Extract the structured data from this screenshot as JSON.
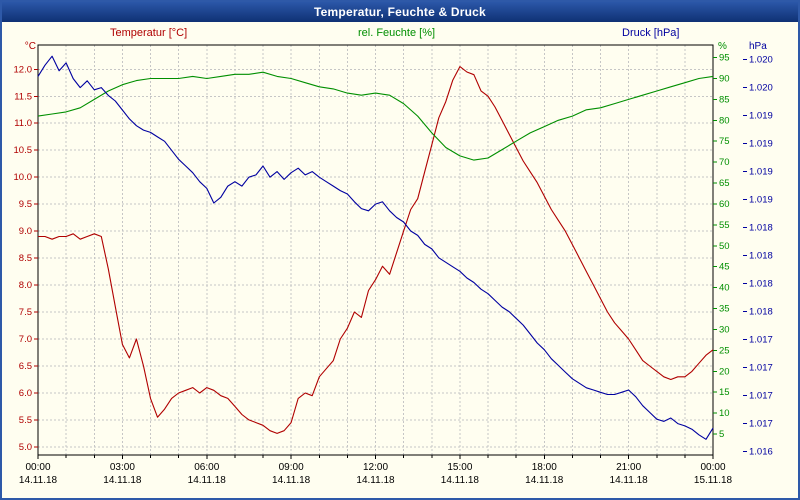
{
  "title": "Temperatur, Feuchte & Druck",
  "header": {
    "temperature_label": "Temperatur [°C]",
    "humidity_label": "rel. Feuchte [%]",
    "pressure_label": "Druck [hPa]"
  },
  "colors": {
    "background": "#fffef0",
    "titlebar_top": "#2b57a8",
    "titlebar_bottom": "#0f3174",
    "titlebar_text": "#ffffff",
    "grid": "#c6c6c6",
    "plot_border": "#000000",
    "temperature": "#b00000",
    "humidity": "#008f00",
    "pressure": "#0000a0"
  },
  "chart_data": {
    "type": "line",
    "title": "Temperatur, Feuchte & Druck",
    "grid": true,
    "x_axis": {
      "unit": "time",
      "range_hours": [
        0,
        24
      ],
      "major_tick_hours": 3,
      "minor_tick_hours": 1,
      "tick_labels": [
        {
          "time": "00:00",
          "date": "14.11.18"
        },
        {
          "time": "03:00",
          "date": "14.11.18"
        },
        {
          "time": "06:00",
          "date": "14.11.18"
        },
        {
          "time": "09:00",
          "date": "14.11.18"
        },
        {
          "time": "12:00",
          "date": "14.11.18"
        },
        {
          "time": "15:00",
          "date": "14.11.18"
        },
        {
          "time": "18:00",
          "date": "14.11.18"
        },
        {
          "time": "21:00",
          "date": "14.11.18"
        },
        {
          "time": "00:00",
          "date": "15.11.18"
        }
      ]
    },
    "axes": {
      "temperature": {
        "unit_label": "°C",
        "color": "#b00000",
        "range": [
          4.85,
          12.45
        ],
        "ticks": [
          "12.0",
          "11.5",
          "11.0",
          "10.5",
          "10.0",
          "9.5",
          "9.0",
          "8.5",
          "8.0",
          "7.5",
          "7.0",
          "6.5",
          "6.0",
          "5.5",
          "5.0"
        ]
      },
      "humidity": {
        "unit_label": "%",
        "color": "#008f00",
        "range": [
          0,
          98
        ],
        "ticks": [
          "95",
          "90",
          "85",
          "80",
          "75",
          "70",
          "65",
          "60",
          "55",
          "50",
          "45",
          "40",
          "35",
          "30",
          "25",
          "20",
          "15",
          "10",
          "5"
        ]
      },
      "pressure": {
        "unit_label": "hPa",
        "color": "#0000a0",
        "range": [
          1.01672,
          1.02038
        ],
        "ticks": [
          {
            "label": "1.020",
            "value": 1.02025
          },
          {
            "label": "1.020",
            "value": 1.02
          },
          {
            "label": "1.019",
            "value": 1.01975
          },
          {
            "label": "1.019",
            "value": 1.0195
          },
          {
            "label": "1.019",
            "value": 1.01925
          },
          {
            "label": "1.019",
            "value": 1.019
          },
          {
            "label": "1.018",
            "value": 1.01875
          },
          {
            "label": "1.018",
            "value": 1.0185
          },
          {
            "label": "1.018",
            "value": 1.01825
          },
          {
            "label": "1.018",
            "value": 1.018
          },
          {
            "label": "1.017",
            "value": 1.01775
          },
          {
            "label": "1.017",
            "value": 1.0175
          },
          {
            "label": "1.017",
            "value": 1.01725
          },
          {
            "label": "1.017",
            "value": 1.017
          },
          {
            "label": "1.016",
            "value": 1.01675
          }
        ]
      }
    },
    "series": [
      {
        "id": "temperature",
        "name": "Temperatur",
        "unit": "°C",
        "axis": "temperature",
        "color": "#b00000",
        "x_start_hours": 0,
        "x_step_hours": 0.25,
        "values": [
          8.9,
          8.9,
          8.85,
          8.9,
          8.9,
          8.95,
          8.85,
          8.9,
          8.95,
          8.9,
          8.3,
          7.6,
          6.9,
          6.65,
          7.0,
          6.5,
          5.9,
          5.55,
          5.7,
          5.9,
          6.0,
          6.05,
          6.1,
          6.0,
          6.1,
          6.05,
          5.95,
          5.9,
          5.75,
          5.6,
          5.5,
          5.45,
          5.4,
          5.3,
          5.25,
          5.3,
          5.45,
          5.9,
          6.0,
          5.95,
          6.3,
          6.45,
          6.6,
          7.0,
          7.2,
          7.5,
          7.4,
          7.9,
          8.1,
          8.35,
          8.2,
          8.6,
          9.0,
          9.4,
          9.6,
          10.1,
          10.6,
          11.1,
          11.4,
          11.8,
          12.05,
          11.95,
          11.9,
          11.6,
          11.5,
          11.3,
          11.05,
          10.8,
          10.55,
          10.3,
          10.1,
          9.9,
          9.65,
          9.4,
          9.2,
          9.0,
          8.75,
          8.5,
          8.25,
          8.0,
          7.75,
          7.5,
          7.3,
          7.15,
          7.0,
          6.8,
          6.6,
          6.5,
          6.4,
          6.3,
          6.25,
          6.3,
          6.3,
          6.4,
          6.55,
          6.7,
          6.8
        ]
      },
      {
        "id": "humidity",
        "name": "rel. Feuchte",
        "unit": "%",
        "axis": "humidity",
        "color": "#008f00",
        "x_start_hours": 0,
        "x_step_hours": 0.5,
        "values": [
          81,
          81.5,
          82,
          83,
          85,
          87,
          88.5,
          89.5,
          90,
          90,
          90,
          90.5,
          90,
          90.5,
          91,
          91,
          91.5,
          90.5,
          90,
          89,
          88,
          87.5,
          86.5,
          86,
          86.5,
          86,
          84,
          81,
          77,
          73.5,
          71.5,
          70.5,
          71,
          73,
          75,
          77,
          78.5,
          80,
          81,
          82.5,
          83,
          84,
          85,
          86,
          87,
          88,
          89,
          90,
          90.5
        ]
      },
      {
        "id": "pressure",
        "name": "Druck",
        "unit": "hPa",
        "axis": "pressure",
        "color": "#0000a0",
        "x_start_hours": 0,
        "x_step_hours": 0.25,
        "values": [
          1.0201,
          1.0202,
          1.02028,
          1.02015,
          1.02022,
          1.02008,
          1.02,
          1.02006,
          1.01998,
          1.02,
          1.01993,
          1.01988,
          1.0198,
          1.01972,
          1.01966,
          1.01962,
          1.0196,
          1.01956,
          1.01952,
          1.01944,
          1.01936,
          1.0193,
          1.01924,
          1.01916,
          1.0191,
          1.01897,
          1.01902,
          1.01912,
          1.01916,
          1.01912,
          1.0192,
          1.01922,
          1.0193,
          1.0192,
          1.01925,
          1.01918,
          1.01924,
          1.01928,
          1.01922,
          1.01925,
          1.0192,
          1.01916,
          1.01912,
          1.01908,
          1.01905,
          1.01898,
          1.01892,
          1.0189,
          1.01896,
          1.01898,
          1.0189,
          1.01884,
          1.0188,
          1.01872,
          1.01868,
          1.0186,
          1.01856,
          1.01848,
          1.01844,
          1.0184,
          1.01836,
          1.0183,
          1.01826,
          1.0182,
          1.01816,
          1.0181,
          1.01804,
          1.018,
          1.01794,
          1.01788,
          1.0178,
          1.01772,
          1.01766,
          1.01758,
          1.01752,
          1.01746,
          1.0174,
          1.01736,
          1.01732,
          1.0173,
          1.01728,
          1.01726,
          1.01726,
          1.01728,
          1.0173,
          1.01724,
          1.01716,
          1.0171,
          1.01704,
          1.01702,
          1.01705,
          1.017,
          1.01698,
          1.01695,
          1.0169,
          1.01686,
          1.01696
        ]
      }
    ]
  }
}
